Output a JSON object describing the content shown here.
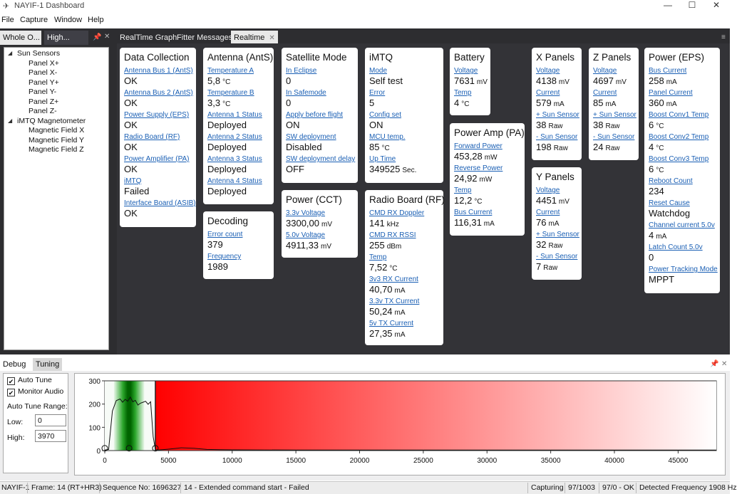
{
  "window": {
    "title": "NAYIF-1 Dashboard",
    "icon": "satellite-icon",
    "minimize": "—",
    "maximize": "☐",
    "close": "✕"
  },
  "menu": [
    "File",
    "Capture",
    "Window",
    "Help"
  ],
  "left_tabs": [
    {
      "label": "Whole O..."
    },
    {
      "label": "High..."
    }
  ],
  "main_tabs": [
    {
      "label": "RealTime Graph"
    },
    {
      "label": "Fitter Messages"
    },
    {
      "label": "Realtime"
    }
  ],
  "tree": {
    "groups": [
      {
        "label": "Sun Sensors",
        "children": [
          "Panel X+",
          "Panel X-",
          "Panel Y+",
          "Panel Y-",
          "Panel Z+",
          "Panel Z-"
        ]
      },
      {
        "label": "iMTQ Magnetometer",
        "children": [
          "Magnetic Field X",
          "Magnetic Field Y",
          "Magnetic Field Z"
        ]
      }
    ]
  },
  "cards": {
    "data_collection": {
      "title": "Data Collection",
      "fields": [
        {
          "label": "Antenna Bus 1 (AntS)",
          "value": "OK"
        },
        {
          "label": "Antenna Bus 2 (AntS)",
          "value": "OK"
        },
        {
          "label": "Power Supply (EPS)",
          "value": "OK"
        },
        {
          "label": "Radio Board (RF)",
          "value": "OK"
        },
        {
          "label": "Power Amplifier (PA)",
          "value": "OK"
        },
        {
          "label": "iMTQ",
          "value": "Failed"
        },
        {
          "label": "Interface Board (ASIB)",
          "value": "OK"
        }
      ]
    },
    "antenna": {
      "title": "Antenna (AntS)",
      "fields": [
        {
          "label": "Temperature A",
          "value": "5,8",
          "unit": "°C"
        },
        {
          "label": "Temperature B",
          "value": "3,3",
          "unit": "°C"
        },
        {
          "label": "Antenna 1 Status",
          "value": "Deployed"
        },
        {
          "label": "Antenna 2 Status",
          "value": "Deployed"
        },
        {
          "label": "Antenna 3 Status",
          "value": "Deployed"
        },
        {
          "label": "Antenna 4 Status",
          "value": "Deployed"
        }
      ]
    },
    "decoding": {
      "title": "Decoding",
      "fields": [
        {
          "label": "Error count",
          "value": "379"
        },
        {
          "label": "Frequency",
          "value": "1989"
        }
      ]
    },
    "satellite_mode": {
      "title": "Satellite Mode",
      "fields": [
        {
          "label": "In Eclipse",
          "value": "0"
        },
        {
          "label": "In Safemode",
          "value": "0"
        },
        {
          "label": "Apply before flight",
          "value": "ON"
        },
        {
          "label": "SW deployment",
          "value": "Disabled"
        },
        {
          "label": "SW deployment delay",
          "value": "OFF"
        }
      ]
    },
    "power_cct": {
      "title": "Power (CCT)",
      "fields": [
        {
          "label": "3.3v Voltage",
          "value": "3300,00",
          "unit": "mV"
        },
        {
          "label": "5.0v Voltage",
          "value": "4911,33",
          "unit": "mV"
        }
      ]
    },
    "imtq": {
      "title": "iMTQ",
      "fields": [
        {
          "label": "Mode",
          "value": "Self test"
        },
        {
          "label": "Error",
          "value": "5"
        },
        {
          "label": "Config set",
          "value": "ON"
        },
        {
          "label": "MCU temp.",
          "value": "85",
          "unit": "°C"
        },
        {
          "label": "Up Time",
          "value": "349525",
          "unit": "Sec."
        }
      ]
    },
    "radio_board": {
      "title": "Radio Board (RF)",
      "fields": [
        {
          "label": "CMD RX Doppler",
          "value": "141",
          "unit": "kHz"
        },
        {
          "label": "CMD RX RSSI",
          "value": "255",
          "unit": "dBm"
        },
        {
          "label": "Temp",
          "value": "7,52",
          "unit": "°C"
        },
        {
          "label": "3v3 RX Current",
          "value": "40,70",
          "unit": "mA"
        },
        {
          "label": "3.3v TX Current",
          "value": "50,24",
          "unit": "mA"
        },
        {
          "label": "5v TX Current",
          "value": "27,35",
          "unit": "mA"
        }
      ]
    },
    "battery": {
      "title": "Battery",
      "fields": [
        {
          "label": "Voltage",
          "value": "7631",
          "unit": "mV"
        },
        {
          "label": "Temp",
          "value": "4",
          "unit": "°C"
        }
      ]
    },
    "power_amp": {
      "title": "Power Amp (PA)",
      "fields": [
        {
          "label": "Forward Power",
          "value": "453,28",
          "unit": "mW"
        },
        {
          "label": "Reverse Power",
          "value": "24,92",
          "unit": "mW"
        },
        {
          "label": "Temp",
          "value": "12,2",
          "unit": "°C"
        },
        {
          "label": "Bus Current",
          "value": "116,31",
          "unit": "mA"
        }
      ]
    },
    "x_panels": {
      "title": "X Panels",
      "fields": [
        {
          "label": "Voltage",
          "value": "4138",
          "unit": "mV"
        },
        {
          "label": "Current",
          "value": "579",
          "unit": "mA"
        },
        {
          "label": "+ Sun Sensor",
          "value": "38",
          "unit": "Raw"
        },
        {
          "label": "- Sun Sensor",
          "value": "198",
          "unit": "Raw"
        }
      ]
    },
    "y_panels": {
      "title": "Y Panels",
      "fields": [
        {
          "label": "Voltage",
          "value": "4451",
          "unit": "mV"
        },
        {
          "label": "Current",
          "value": "76",
          "unit": "mA"
        },
        {
          "label": "+ Sun Sensor",
          "value": "32",
          "unit": "Raw"
        },
        {
          "label": "- Sun Sensor",
          "value": "7",
          "unit": "Raw"
        }
      ]
    },
    "z_panels": {
      "title": "Z Panels",
      "fields": [
        {
          "label": "Voltage",
          "value": "4697",
          "unit": "mV"
        },
        {
          "label": "Current",
          "value": "85",
          "unit": "mA"
        },
        {
          "label": "+ Sun Sensor",
          "value": "38",
          "unit": "Raw"
        },
        {
          "label": "- Sun Sensor",
          "value": "24",
          "unit": "Raw"
        }
      ]
    },
    "power_eps": {
      "title": "Power (EPS)",
      "fields": [
        {
          "label": "Bus Current",
          "value": "258",
          "unit": "mA"
        },
        {
          "label": "Panel Current",
          "value": "360",
          "unit": "mA"
        },
        {
          "label": "Boost Conv1 Temp",
          "value": "6",
          "unit": "°C"
        },
        {
          "label": "Boost Conv2 Temp",
          "value": "4",
          "unit": "°C"
        },
        {
          "label": "Boost Conv3 Temp",
          "value": "6",
          "unit": "°C"
        },
        {
          "label": "Reboot Count",
          "value": "234"
        },
        {
          "label": "Reset Cause",
          "value": "Watchdog"
        },
        {
          "label": "Channel current 5.0v",
          "value": "4",
          "unit": "mA"
        },
        {
          "label": "Latch Count 5.0v",
          "value": "0"
        },
        {
          "label": "Power Tracking Mode",
          "value": "MPPT"
        }
      ]
    }
  },
  "bottom_tabs": [
    {
      "label": "Debug"
    },
    {
      "label": "Tuning"
    }
  ],
  "tuning": {
    "auto_tune": {
      "label": "Auto Tune",
      "checked": true
    },
    "monitor_audio": {
      "label": "Monitor Audio",
      "checked": true
    },
    "range_label": "Auto Tune Range:",
    "low_label": "Low:",
    "low_value": "0",
    "high_label": "High:",
    "high_value": "3970"
  },
  "chart_data": {
    "type": "line",
    "title": "",
    "xlabel": "",
    "ylabel": "",
    "xlim": [
      0,
      48000
    ],
    "ylim": [
      0,
      300
    ],
    "x_ticks": [
      0,
      5000,
      10000,
      15000,
      20000,
      25000,
      30000,
      35000,
      40000,
      45000
    ],
    "y_ticks": [
      0,
      100,
      200,
      300
    ],
    "tune_range": [
      0,
      3970
    ],
    "tuned_frequency": 1908,
    "grid": false,
    "series": [
      {
        "x": [
          0,
          300,
          600,
          900,
          1200,
          1400,
          1600,
          1800,
          2000,
          2200,
          2400,
          2600,
          2800,
          3000,
          3200,
          3400,
          3600,
          3800,
          3970,
          4200,
          5000,
          6000,
          7000,
          8000,
          9000,
          10000,
          15000,
          20000,
          25000,
          30000,
          35000,
          40000,
          45000,
          48000
        ],
        "y": [
          2,
          5,
          170,
          215,
          222,
          208,
          220,
          212,
          230,
          210,
          216,
          196,
          204,
          208,
          212,
          199,
          210,
          60,
          4,
          2,
          6,
          12,
          10,
          5,
          4,
          3,
          2,
          2,
          2,
          2,
          2,
          2,
          2,
          2
        ]
      }
    ],
    "markers": [
      {
        "x": 0,
        "y": 10
      },
      {
        "x": 1908,
        "y": 10
      },
      {
        "x": 3970,
        "y": 10
      }
    ]
  },
  "status": {
    "satellite": "NAYIF-1",
    "frame": "Frame:  14 (RT+HR3)",
    "sequence": "Sequence No:  1696327",
    "message": "14 - Extended command start - Failed",
    "state": "Capturing",
    "count1": "97/1003",
    "count2": "97/0 - OK",
    "detected": "Detected Frequency  1908 Hz"
  }
}
